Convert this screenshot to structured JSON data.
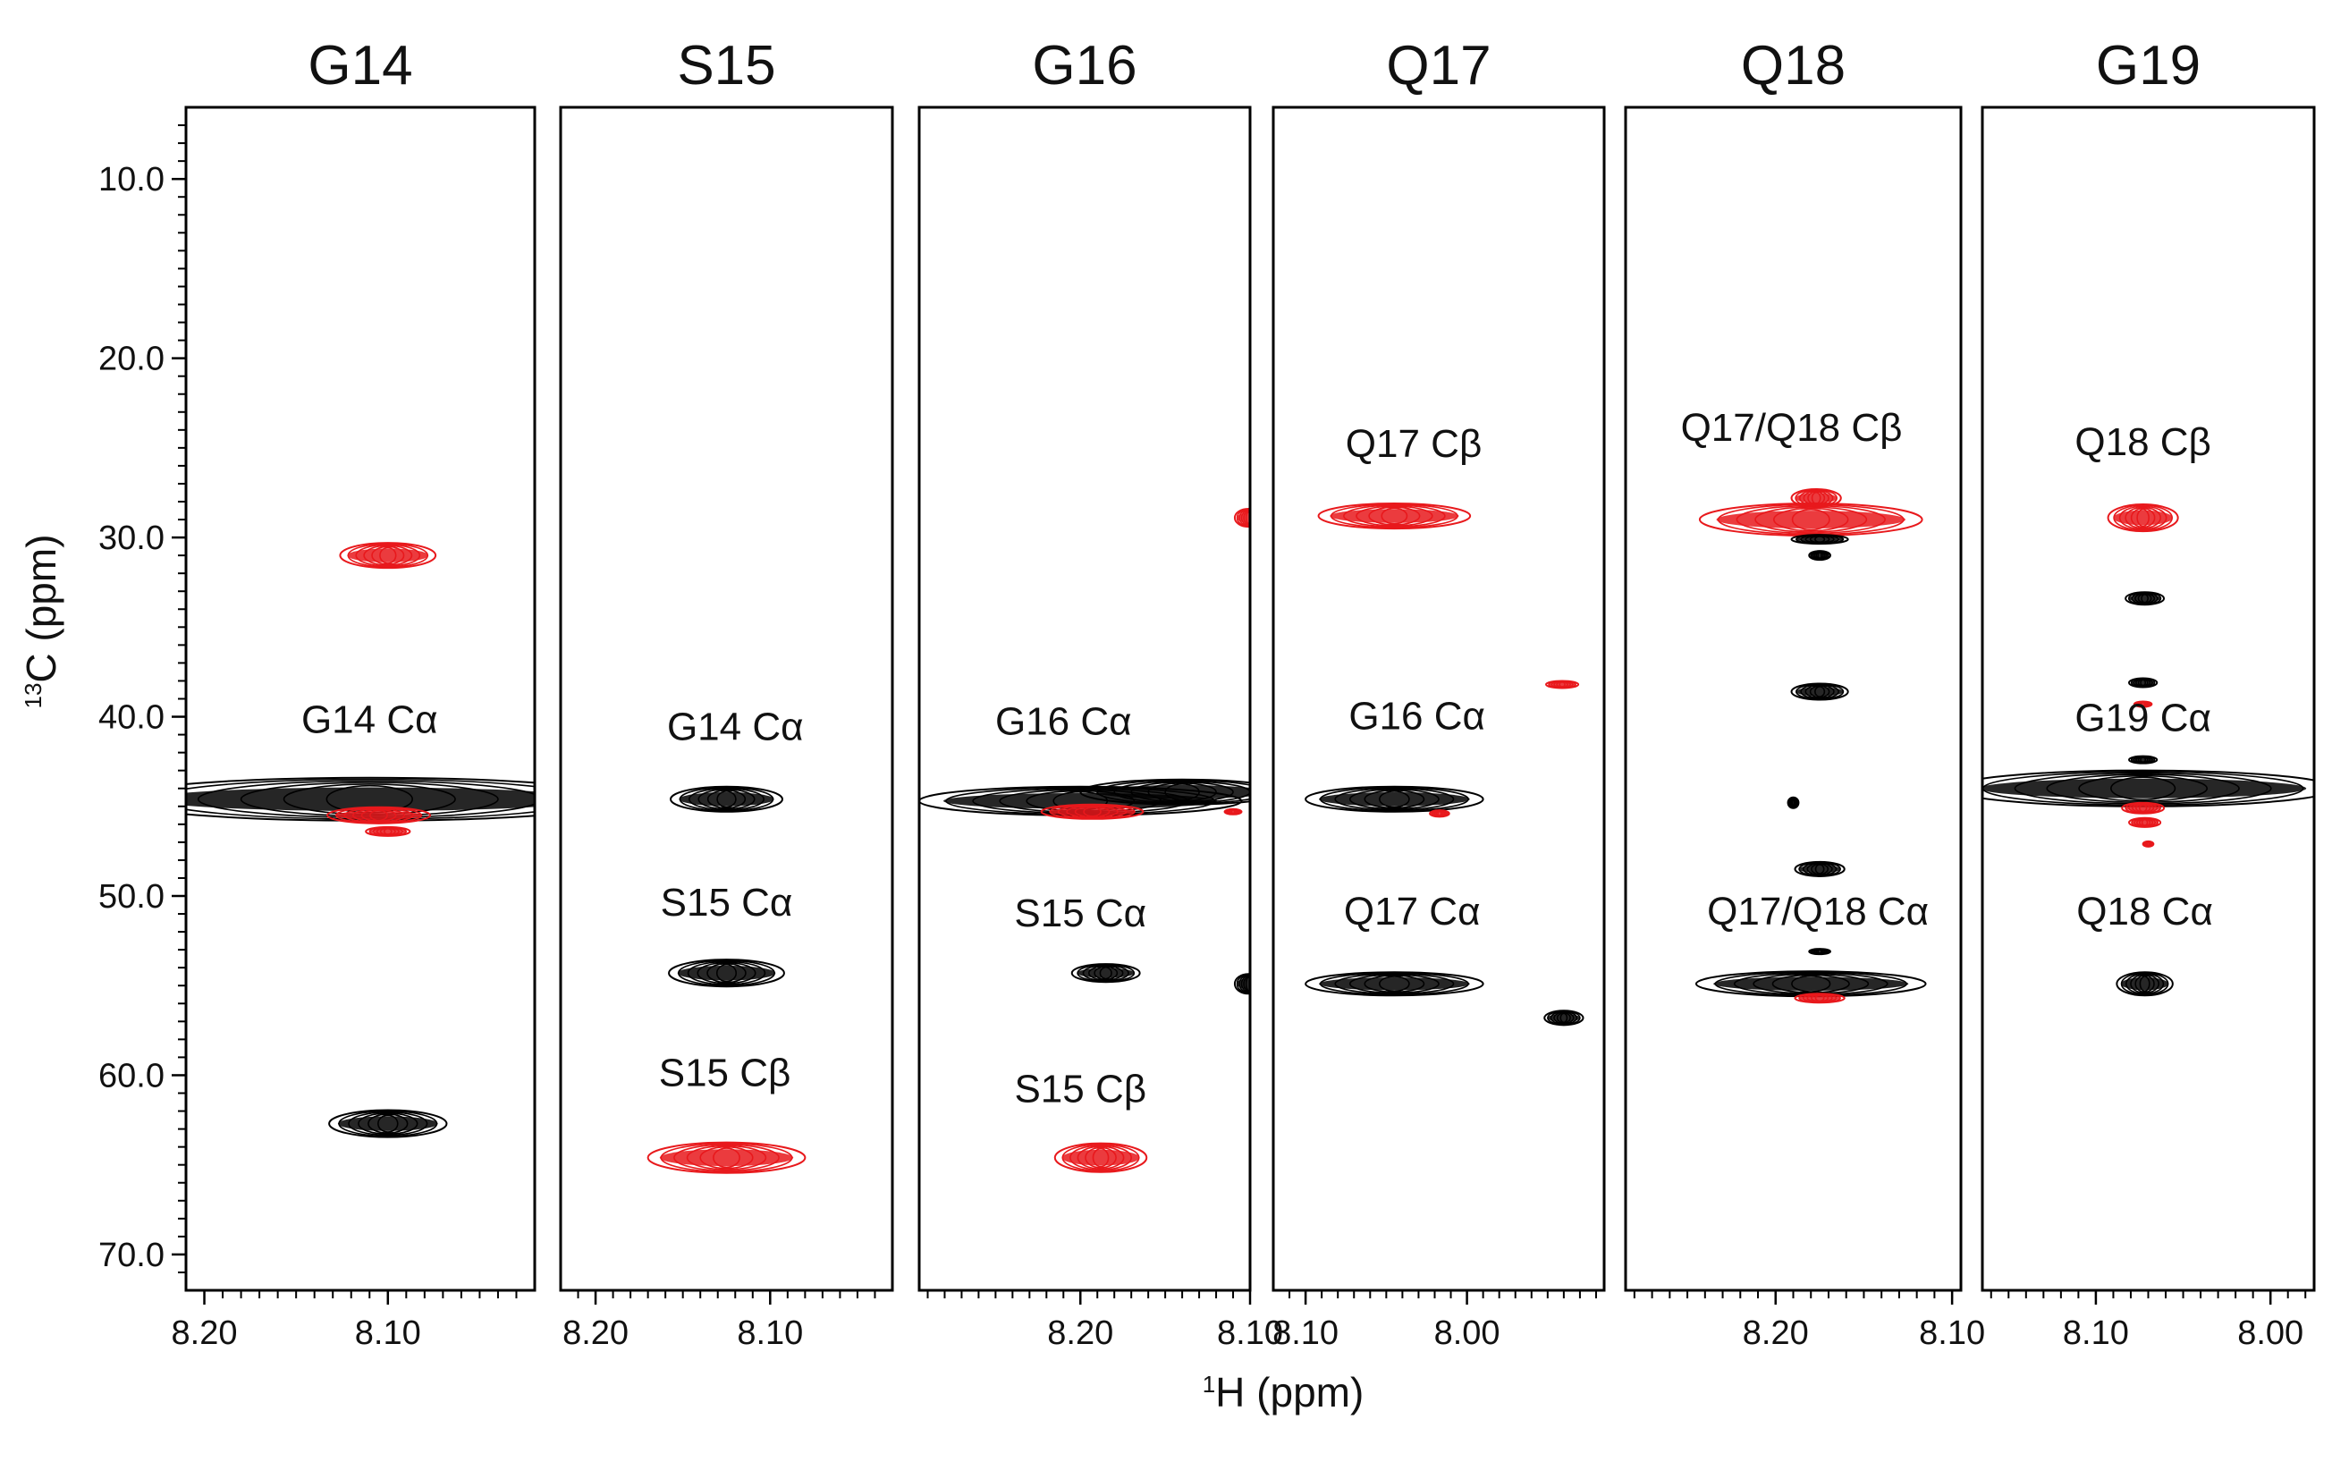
{
  "chart_data": {
    "type": "nmr-strip-plot",
    "xlabel": "1H (ppm)",
    "xlabel_sup": "1",
    "xlabel_rest": "H (ppm)",
    "ylabel_sup": "13",
    "ylabel_rest": "C (ppm)",
    "ylim": [
      72,
      6
    ],
    "y_ticks": [
      10,
      20,
      30,
      40,
      50,
      60,
      70
    ],
    "y_tick_labels": [
      "10.0",
      "20.0",
      "30.0",
      "40.0",
      "50.0",
      "60.0",
      "70.0"
    ],
    "series_colors": {
      "black": "#000000",
      "red": "#e8191c"
    },
    "strips": [
      {
        "name": "G14",
        "xlim": [
          8.21,
          8.02
        ],
        "x_ticks": [
          8.2,
          8.1
        ],
        "x_tick_labels": [
          "8.20",
          "8.10"
        ],
        "labels": [
          {
            "text": "G14 Cα",
            "h": 8.11,
            "c": 40.9
          }
        ],
        "peaks": [
          {
            "h": 8.1,
            "c": 31.0,
            "hw": 0.026,
            "cw": 0.7,
            "color": "red"
          },
          {
            "h": 8.11,
            "c": 44.6,
            "hw": 0.14,
            "cw": 1.2,
            "color": "black"
          },
          {
            "h": 8.105,
            "c": 45.5,
            "hw": 0.028,
            "cw": 0.45,
            "color": "red"
          },
          {
            "h": 8.1,
            "c": 46.4,
            "hw": 0.012,
            "cw": 0.25,
            "color": "red"
          },
          {
            "h": 8.1,
            "c": 62.7,
            "hw": 0.032,
            "cw": 0.75,
            "color": "black"
          }
        ]
      },
      {
        "name": "S15",
        "xlim": [
          8.22,
          8.03
        ],
        "x_ticks": [
          8.2,
          8.1
        ],
        "x_tick_labels": [
          "8.20",
          "8.10"
        ],
        "labels": [
          {
            "text": "G14 Cα",
            "h": 8.12,
            "c": 41.3
          },
          {
            "text": "S15 Cα",
            "h": 8.125,
            "c": 51.1
          },
          {
            "text": "S15 Cβ",
            "h": 8.126,
            "c": 60.6
          }
        ],
        "peaks": [
          {
            "h": 8.125,
            "c": 44.6,
            "hw": 0.032,
            "cw": 0.7,
            "color": "black"
          },
          {
            "h": 8.125,
            "c": 54.3,
            "hw": 0.033,
            "cw": 0.75,
            "color": "black"
          },
          {
            "h": 8.125,
            "c": 64.6,
            "hw": 0.045,
            "cw": 0.85,
            "color": "red"
          }
        ]
      },
      {
        "name": "G16",
        "xlim": [
          8.295,
          8.1
        ],
        "x_ticks": [
          8.2,
          8.1
        ],
        "x_tick_labels": [
          "8.20",
          "8.10"
        ],
        "labels": [
          {
            "text": "G16 Cα",
            "h": 8.21,
            "c": 41.0
          },
          {
            "text": "S15 Cα",
            "h": 8.2,
            "c": 51.7
          },
          {
            "text": "S15 Cβ",
            "h": 8.2,
            "c": 61.5
          }
        ],
        "peaks": [
          {
            "h": 8.2,
            "c": 44.7,
            "hw": 0.095,
            "cw": 0.8,
            "color": "black"
          },
          {
            "h": 8.14,
            "c": 44.2,
            "hw": 0.06,
            "cw": 0.7,
            "color": "black"
          },
          {
            "h": 8.193,
            "c": 45.3,
            "hw": 0.03,
            "cw": 0.4,
            "color": "red"
          },
          {
            "h": 8.185,
            "c": 54.3,
            "hw": 0.02,
            "cw": 0.5,
            "color": "black"
          },
          {
            "h": 8.188,
            "c": 64.6,
            "hw": 0.027,
            "cw": 0.8,
            "color": "red"
          },
          {
            "h": 8.101,
            "c": 28.9,
            "hw": 0.008,
            "cw": 0.5,
            "color": "red"
          },
          {
            "h": 8.101,
            "c": 54.9,
            "hw": 0.008,
            "cw": 0.55,
            "color": "black"
          },
          {
            "h": 8.11,
            "c": 45.3,
            "hw": 0.005,
            "cw": 0.15,
            "color": "red"
          }
        ]
      },
      {
        "name": "Q17",
        "xlim": [
          8.12,
          7.915
        ],
        "x_ticks": [
          8.1,
          8.0
        ],
        "x_tick_labels": [
          "8.10",
          "8.00"
        ],
        "labels": [
          {
            "text": "Q17 Cβ",
            "h": 8.033,
            "c": 25.5
          },
          {
            "text": "G16 Cα",
            "h": 8.031,
            "c": 40.7
          },
          {
            "text": "Q17 Cα",
            "h": 8.034,
            "c": 51.6
          }
        ],
        "peaks": [
          {
            "h": 8.045,
            "c": 28.8,
            "hw": 0.047,
            "cw": 0.7,
            "color": "red"
          },
          {
            "h": 8.045,
            "c": 44.6,
            "hw": 0.055,
            "cw": 0.7,
            "color": "black"
          },
          {
            "h": 8.017,
            "c": 45.4,
            "hw": 0.006,
            "cw": 0.18,
            "color": "red"
          },
          {
            "h": 8.045,
            "c": 54.9,
            "hw": 0.055,
            "cw": 0.65,
            "color": "black"
          },
          {
            "h": 7.941,
            "c": 38.2,
            "hw": 0.01,
            "cw": 0.2,
            "color": "red"
          },
          {
            "h": 7.94,
            "c": 56.8,
            "hw": 0.012,
            "cw": 0.4,
            "color": "black"
          }
        ]
      },
      {
        "name": "Q18",
        "xlim": [
          8.285,
          8.095
        ],
        "x_ticks": [
          8.2,
          8.1
        ],
        "x_tick_labels": [
          "8.20",
          "8.10"
        ],
        "labels": [
          {
            "text": "Q17/Q18 Cβ",
            "h": 8.191,
            "c": 24.6
          },
          {
            "text": "Q17/Q18 Cα",
            "h": 8.176,
            "c": 51.6
          }
        ],
        "peaks": [
          {
            "h": 8.18,
            "c": 29.0,
            "hw": 0.063,
            "cw": 0.9,
            "color": "red"
          },
          {
            "h": 8.177,
            "c": 27.8,
            "hw": 0.014,
            "cw": 0.5,
            "color": "red"
          },
          {
            "h": 8.175,
            "c": 30.1,
            "hw": 0.016,
            "cw": 0.25,
            "color": "black"
          },
          {
            "h": 8.175,
            "c": 31.0,
            "hw": 0.006,
            "cw": 0.25,
            "color": "black"
          },
          {
            "h": 8.175,
            "c": 38.6,
            "hw": 0.016,
            "cw": 0.45,
            "color": "black"
          },
          {
            "h": 8.19,
            "c": 44.8,
            "hw": 0.003,
            "cw": 0.3,
            "color": "black"
          },
          {
            "h": 8.175,
            "c": 48.5,
            "hw": 0.014,
            "cw": 0.4,
            "color": "black"
          },
          {
            "h": 8.175,
            "c": 53.1,
            "hw": 0.006,
            "cw": 0.15,
            "color": "black"
          },
          {
            "h": 8.18,
            "c": 54.9,
            "hw": 0.065,
            "cw": 0.7,
            "color": "black"
          },
          {
            "h": 8.175,
            "c": 55.7,
            "hw": 0.014,
            "cw": 0.25,
            "color": "red"
          }
        ]
      },
      {
        "name": "G19",
        "xlim": [
          8.165,
          7.975
        ],
        "x_ticks": [
          8.1,
          8.0
        ],
        "x_tick_labels": [
          "8.10",
          "8.00"
        ],
        "labels": [
          {
            "text": "Q18 Cβ",
            "h": 8.073,
            "c": 25.4
          },
          {
            "text": "G19 Cα",
            "h": 8.073,
            "c": 40.8
          },
          {
            "text": "Q18 Cα",
            "h": 8.072,
            "c": 51.6
          }
        ],
        "peaks": [
          {
            "h": 8.073,
            "c": 28.9,
            "hw": 0.02,
            "cw": 0.75,
            "color": "red"
          },
          {
            "h": 8.072,
            "c": 33.4,
            "hw": 0.011,
            "cw": 0.35,
            "color": "black"
          },
          {
            "h": 8.073,
            "c": 38.1,
            "hw": 0.008,
            "cw": 0.25,
            "color": "black"
          },
          {
            "h": 8.073,
            "c": 39.3,
            "hw": 0.005,
            "cw": 0.15,
            "color": "red"
          },
          {
            "h": 8.073,
            "c": 42.4,
            "hw": 0.008,
            "cw": 0.2,
            "color": "black"
          },
          {
            "h": 8.073,
            "c": 44.0,
            "hw": 0.11,
            "cw": 1.0,
            "color": "black"
          },
          {
            "h": 8.073,
            "c": 45.1,
            "hw": 0.012,
            "cw": 0.3,
            "color": "red"
          },
          {
            "h": 8.072,
            "c": 45.9,
            "hw": 0.009,
            "cw": 0.25,
            "color": "red"
          },
          {
            "h": 8.07,
            "c": 47.1,
            "hw": 0.003,
            "cw": 0.15,
            "color": "red"
          },
          {
            "h": 8.072,
            "c": 54.9,
            "hw": 0.016,
            "cw": 0.65,
            "color": "black"
          }
        ]
      }
    ]
  }
}
